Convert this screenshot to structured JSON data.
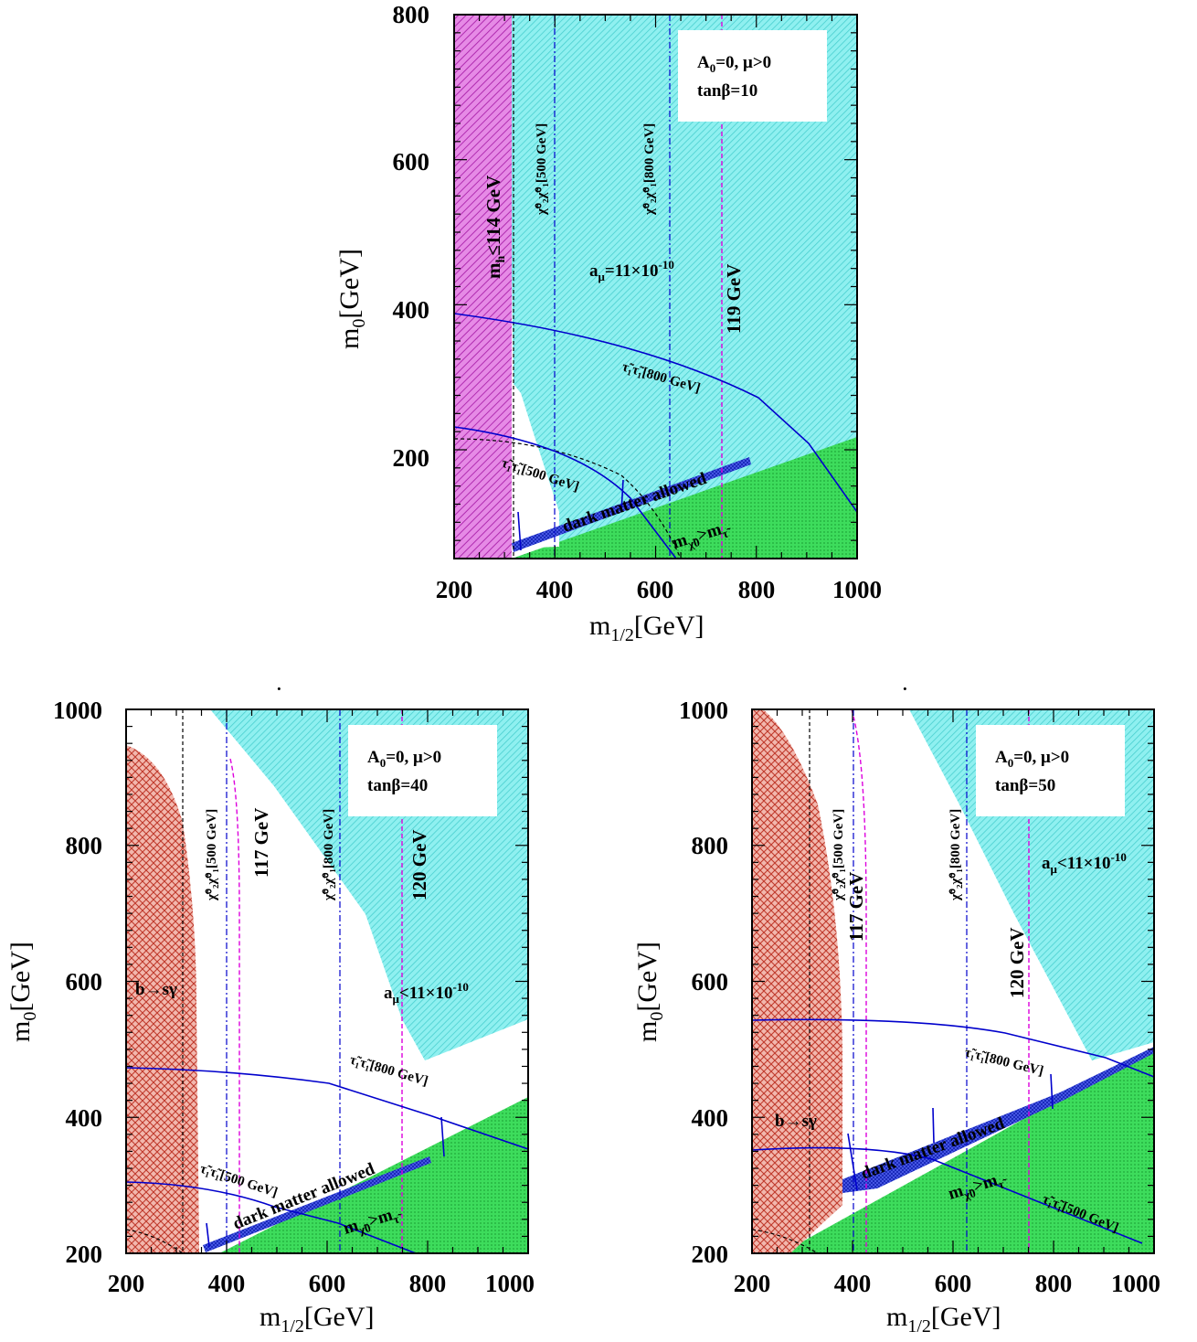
{
  "chart_data": [
    {
      "type": "area",
      "panel": "top",
      "xlabel": "m1/2[GeV]",
      "ylabel": "m0[GeV]",
      "xlim": [
        200,
        1000
      ],
      "ylim": [
        50,
        800
      ],
      "xticks": [
        200,
        400,
        600,
        800,
        1000
      ],
      "yticks": [
        200,
        400,
        600,
        800
      ],
      "legend": {
        "line1": "A0=0,  μ>0",
        "line2": "tanβ=10"
      },
      "regions": [
        {
          "name": "mh ≤ 114 GeV",
          "color": "#cc33cc",
          "polygon": [
            [
              200,
              50
            ],
            [
              315,
              50
            ],
            [
              315,
              800
            ],
            [
              200,
              800
            ]
          ]
        },
        {
          "name": "aμ = 11×10⁻¹⁰",
          "color": "#66e0e0",
          "polygon": [
            [
              315,
              800
            ],
            [
              1000,
              800
            ],
            [
              1000,
              230
            ],
            [
              920,
              200
            ],
            [
              410,
              50
            ],
            [
              315,
              280
            ]
          ]
        },
        {
          "name": "m χ̃0 > m τ̃",
          "color": "#22cc44",
          "polygon": [
            [
              315,
              50
            ],
            [
              1000,
              50
            ],
            [
              1000,
              230
            ]
          ]
        },
        {
          "name": "dark matter allowed",
          "color": "#2233dd",
          "polygon": [
            [
              325,
              62
            ],
            [
              650,
              150
            ],
            [
              660,
              162
            ],
            [
              330,
              75
            ]
          ]
        }
      ],
      "curves": [
        {
          "name": "τ̃1τ̃1[800 GeV]",
          "color": "#0000cc",
          "points": [
            [
              200,
              395
            ],
            [
              400,
              370
            ],
            [
              600,
              320
            ],
            [
              780,
              262
            ],
            [
              900,
              215
            ],
            [
              1000,
              115
            ]
          ]
        },
        {
          "name": "τ̃1τ̃1[500 GeV]",
          "color": "#0000cc",
          "points": [
            [
              200,
              238
            ],
            [
              350,
              220
            ],
            [
              450,
              190
            ],
            [
              520,
              150
            ],
            [
              580,
              110
            ],
            [
              640,
              50
            ]
          ]
        },
        {
          "name": "χ̃02χ̃01[500 GeV]",
          "color": "#0000cc",
          "x_const": 400
        },
        {
          "name": "χ̃02χ̃01[800 GeV]",
          "color": "#0000cc",
          "x_const": 630
        },
        {
          "name": "119 GeV",
          "color": "#cc00cc",
          "x_const": 730
        },
        {
          "name": "m0 boundary",
          "color": "#000000",
          "dash": "dashed",
          "x_const": 315
        }
      ],
      "annotations": [
        "mh≤114 GeV",
        "aμ=11×10-10",
        "119 GeV",
        "τ̃1τ̃1[800 GeV]",
        "τ̃1τ̃1[500 GeV]",
        "dark matter allowed",
        "mχ̃0>mτ̃",
        "χ̃02χ̃01[500 GeV]",
        "χ̃02χ̃01[800 GeV]"
      ]
    },
    {
      "type": "area",
      "panel": "bottom-left",
      "xlabel": "m1/2[GeV]",
      "ylabel": "m0[GeV]",
      "xlim": [
        200,
        1000
      ],
      "ylim": [
        200,
        1000
      ],
      "xticks": [
        200,
        400,
        600,
        800,
        1000
      ],
      "yticks": [
        200,
        400,
        600,
        800,
        1000
      ],
      "legend": {
        "line1": "A0=0,  μ>0",
        "line2": "tanβ=40"
      },
      "regions": [
        {
          "name": "b→sγ",
          "color": "#cc3322"
        },
        {
          "name": "aμ<11×10⁻¹⁰",
          "color": "#66e0e0"
        },
        {
          "name": "m χ̃0 > m τ̃",
          "color": "#22cc44"
        },
        {
          "name": "dark matter allowed",
          "color": "#2233dd"
        }
      ],
      "curves": [
        {
          "name": "τ̃1τ̃1[800 GeV]",
          "points": [
            [
              200,
              472
            ],
            [
              400,
              465
            ],
            [
              600,
              445
            ],
            [
              800,
              400
            ],
            [
              1000,
              350
            ]
          ]
        },
        {
          "name": "τ̃1τ̃1[500 GeV]",
          "points": [
            [
              200,
              305
            ],
            [
              350,
              298
            ],
            [
              500,
              270
            ],
            [
              620,
              230
            ],
            [
              760,
              200
            ]
          ]
        },
        {
          "name": "χ̃02χ̃01[500 GeV]",
          "x_const": 400
        },
        {
          "name": "χ̃02χ̃01[800 GeV]",
          "x_const": 630
        },
        {
          "name": "117 GeV",
          "x_const": 425
        },
        {
          "name": "120 GeV",
          "x_const": 750
        }
      ],
      "annotations": [
        "b→sγ",
        "117 GeV",
        "120 GeV",
        "aμ<11×10-10",
        "τ̃1τ̃1[800 GeV]",
        "τ̃1τ̃1[500 GeV]",
        "dark matter allowed",
        "mχ̃0>mτ̃",
        "χ̃02χ̃01[500 GeV]",
        "χ̃02χ̃01[800 GeV]"
      ]
    },
    {
      "type": "area",
      "panel": "bottom-right",
      "xlabel": "m1/2[GeV]",
      "ylabel": "m0[GeV]",
      "xlim": [
        200,
        1000
      ],
      "ylim": [
        200,
        1000
      ],
      "xticks": [
        200,
        400,
        600,
        800,
        1000
      ],
      "yticks": [
        200,
        400,
        600,
        800,
        1000
      ],
      "legend": {
        "line1": "A0=0,  μ>0",
        "line2": "tanβ=50"
      },
      "regions": [
        {
          "name": "b→sγ",
          "color": "#cc3322"
        },
        {
          "name": "aμ<11×10⁻¹⁰",
          "color": "#66e0e0"
        },
        {
          "name": "m χ̃0 > m τ̃",
          "color": "#22cc44"
        },
        {
          "name": "dark matter allowed",
          "color": "#2233dd"
        }
      ],
      "curves": [
        {
          "name": "τ̃1τ̃1[800 GeV]",
          "points": [
            [
              200,
              540
            ],
            [
              400,
              540
            ],
            [
              600,
              525
            ],
            [
              800,
              500
            ],
            [
              1000,
              460
            ]
          ]
        },
        {
          "name": "τ̃1τ̃1[500 GeV]",
          "points": [
            [
              200,
              350
            ],
            [
              400,
              350
            ],
            [
              600,
              330
            ],
            [
              800,
              280
            ],
            [
              980,
              200
            ]
          ]
        },
        {
          "name": "χ̃02χ̃01[500 GeV]",
          "x_const": 400
        },
        {
          "name": "χ̃02χ̃01[800 GeV]",
          "x_const": 625
        },
        {
          "name": "117 GeV",
          "x_const": 425
        },
        {
          "name": "120 GeV",
          "x_const": 750
        }
      ],
      "annotations": [
        "b→sγ",
        "117 GeV",
        "120 GeV",
        "aμ<11×10-10",
        "τ̃1τ̃1[800 GeV]",
        "τ̃1τ̃1[500 GeV]",
        "dark matter allowed",
        "mχ̃0>mτ̃",
        "χ̃02χ̃01[500 GeV]",
        "χ̃02χ̃01[800 GeV]"
      ]
    }
  ],
  "text": {
    "top": {
      "xtick": [
        "200",
        "400",
        "600",
        "800",
        "1000"
      ],
      "ytick": [
        "800",
        "600",
        "400",
        "200"
      ],
      "ylabel_main": "m",
      "ylabel_sub": "0",
      "ylabel_rest": "[GeV]",
      "xlabel_main": "m",
      "xlabel_sub": "1/2",
      "xlabel_rest": "[GeV]",
      "legend1_a": "A",
      "legend1_sub": "0",
      "legend1_b": "=0,  μ>0",
      "legend2": "tanβ=10",
      "mh_main": "m",
      "mh_sub": "h",
      "mh_rest": "≤114 GeV",
      "amu_main": "a",
      "amu_sub": "μ",
      "amu_rest": "=11×10",
      "amu_exp": "-10",
      "higgs": "119 GeV",
      "stau800": "τ̃₁τ̃₁[800 GeV]",
      "stau500": "τ̃₁τ̃₁[500 GeV]",
      "dm": "dark matter allowed",
      "mchi_main": "m",
      "mchi_sub": "χ̃0",
      "mchi_mid": ">m",
      "mchi_sub2": "τ̃",
      "chi500": "χ̃⁰₂χ̃⁰₁[500 GeV]",
      "chi800": "χ̃⁰₂χ̃⁰₁[800 GeV]"
    },
    "left": {
      "xtick": [
        "200",
        "400",
        "600",
        "800",
        "1000"
      ],
      "ytick": [
        "1000",
        "800",
        "600",
        "400",
        "200"
      ],
      "legend1_a": "A",
      "legend1_sub": "0",
      "legend1_b": "=0,  μ>0",
      "legend2": "tanβ=40",
      "bsg": "b→sγ",
      "higgs1": "117 GeV",
      "higgs2": "120 GeV",
      "amu_main": "a",
      "amu_sub": "μ",
      "amu_rest": "<11×10",
      "amu_exp": "-10",
      "stau800": "τ̃₁τ̃₁[800 GeV]",
      "stau500": "τ̃₁τ̃₁[500 GeV]",
      "dm": "dark matter allowed",
      "chi500": "χ̃⁰₂χ̃⁰₁[500 GeV]",
      "chi800": "χ̃⁰₂χ̃⁰₁[800 GeV]",
      "dot": "."
    },
    "right": {
      "xtick": [
        "200",
        "400",
        "600",
        "800",
        "1000"
      ],
      "ytick": [
        "1000",
        "800",
        "600",
        "400",
        "200"
      ],
      "legend1_a": "A",
      "legend1_sub": "0",
      "legend1_b": "=0,  μ>0",
      "legend2": "tanβ=50",
      "bsg": "b→sγ",
      "higgs1": "117 GeV",
      "higgs2": "120 GeV",
      "amu_main": "a",
      "amu_sub": "μ",
      "amu_rest": "<11×10",
      "amu_exp": "-10",
      "stau800": "τ̃₁τ̃₁[800 GeV]",
      "stau500": "τ̃₁τ̃₁[500 GeV]",
      "dm": "dark matter allowed",
      "chi500": "χ̃⁰₂χ̃⁰₁[500 GeV]",
      "chi800": "χ̃⁰₂χ̃⁰₁[800 GeV]",
      "dot": "."
    }
  },
  "colors": {
    "magenta_region": "#cc33cc",
    "cyan_region": "#66e0e0",
    "green_region": "#22cc44",
    "red_region": "#cc3322",
    "dm_band": "#2233dd",
    "blue_curve": "#0000cc",
    "magenta_line": "#dd00dd"
  }
}
